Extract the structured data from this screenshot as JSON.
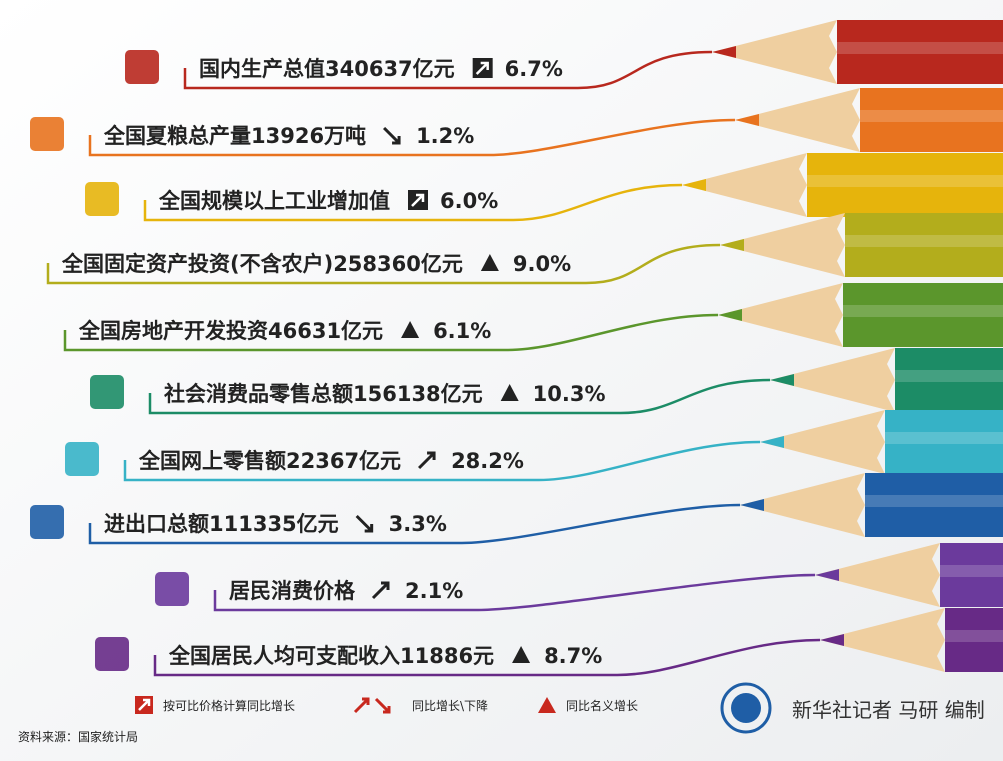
{
  "items": [
    {
      "label": "国内生产总值340637亿元",
      "change": "6.7%",
      "color": "#b8281e"
    },
    {
      "label": "全国夏粮总产量13926万吨",
      "change": "1.2%",
      "color": "#e8731f"
    },
    {
      "label": "全国规模以上工业增加值",
      "change": "6.0%",
      "color": "#e6b40c"
    },
    {
      "label": "全国固定资产投资(不含农户)258360亿元",
      "change": "9.0%",
      "color": "#b3ad1c"
    },
    {
      "label": "全国房地产开发投资46631亿元",
      "change": "6.1%",
      "color": "#5b962c"
    },
    {
      "label": "社会消费品零售总额156138亿元",
      "change": "10.3%",
      "color": "#1c8c66"
    },
    {
      "label": "全国网上零售额22367亿元",
      "change": "28.2%",
      "color": "#36b2c6"
    },
    {
      "label": "进出口总额111335亿元",
      "change": "3.3%",
      "color": "#1f5ea6"
    },
    {
      "label": "居民消费价格",
      "change": "2.1%",
      "color": "#6b3a9c"
    },
    {
      "label": "全国居民人均可支配收入11886元",
      "change": "8.7%",
      "color": "#672a86"
    }
  ],
  "legend": [
    {
      "text": "按可比价格计算同比增长"
    },
    {
      "text": "同比增长\\下降"
    },
    {
      "text": "同比名义增长"
    }
  ],
  "source": "资料来源：国家统计局",
  "credit": "新华社记者 马研 编制"
}
